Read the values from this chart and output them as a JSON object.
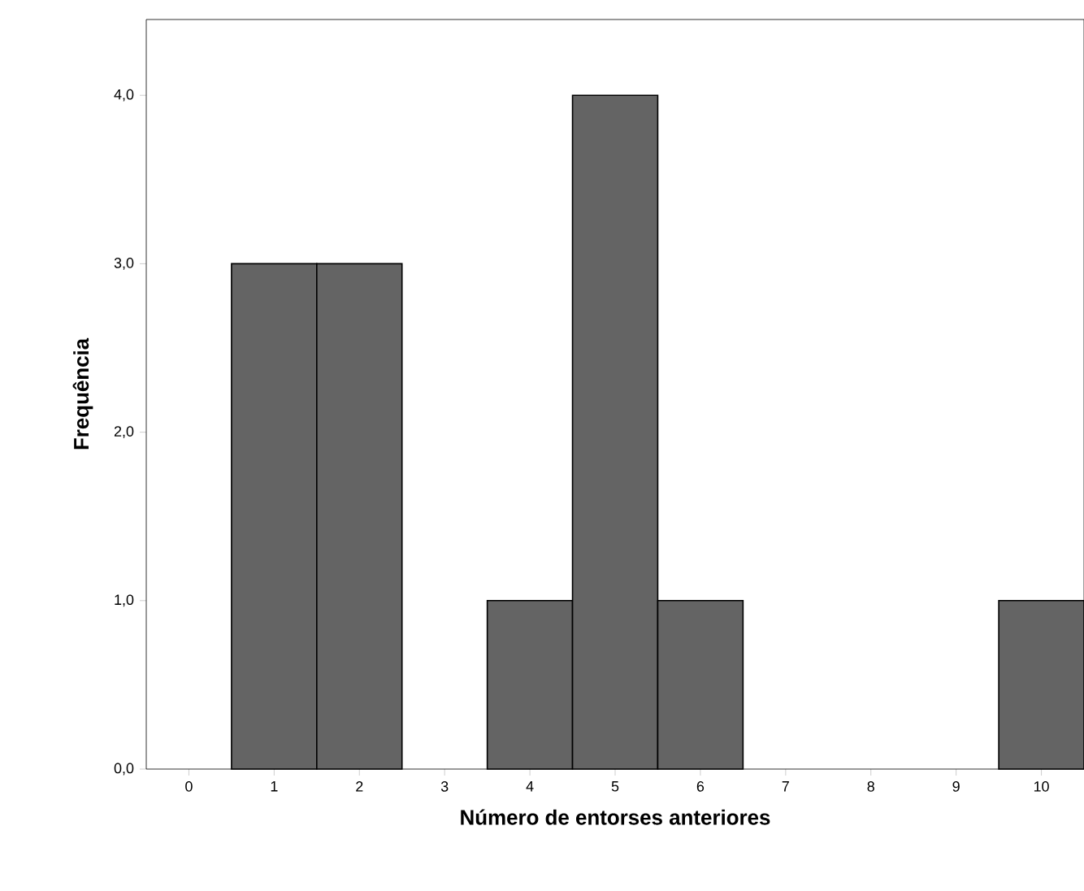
{
  "chart_data": {
    "type": "histogram",
    "xlabel": "Número de entorses anteriores",
    "ylabel": "Frequência",
    "bins": [
      -0.5,
      0.5,
      1.5,
      2.5,
      3.5,
      4.5,
      5.5,
      6.5,
      7.5,
      8.5,
      9.5,
      10.5
    ],
    "values": [
      0,
      3,
      3,
      0,
      1,
      4,
      1,
      0,
      0,
      0,
      1
    ],
    "color": "#646464",
    "xlim": [
      -0.5,
      10.5
    ],
    "xticks": [
      0,
      1,
      2,
      3,
      4,
      5,
      6,
      7,
      8,
      9,
      10
    ],
    "ylim": [
      0,
      4.45
    ],
    "yticks": [
      {
        "value": 0,
        "label": "0,0"
      },
      {
        "value": 1,
        "label": "1,0"
      },
      {
        "value": 2,
        "label": "2,0"
      },
      {
        "value": 3,
        "label": "3,0"
      },
      {
        "value": 4,
        "label": "4,0"
      }
    ],
    "grid": false
  }
}
